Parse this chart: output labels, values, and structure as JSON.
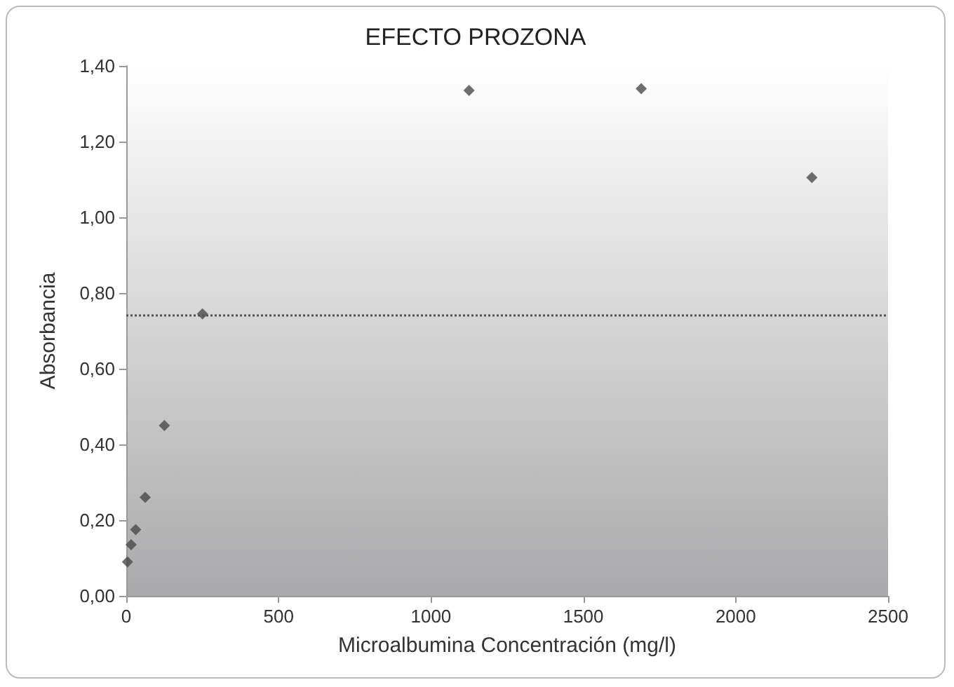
{
  "chart_data": {
    "type": "scatter",
    "title": "EFECTO PROZONA",
    "xlabel": "Microalbumina Concentración (mg/l)",
    "ylabel": "Absorbancia",
    "x": [
      4,
      16,
      31,
      62,
      125,
      250,
      1125,
      1690,
      2250
    ],
    "values": [
      0.09,
      0.135,
      0.175,
      0.26,
      0.45,
      0.745,
      1.335,
      1.34,
      1.105
    ],
    "color": "#4a4a4a",
    "marker": "diamond",
    "grid": false,
    "xlim": [
      0,
      2500
    ],
    "xticks": [
      0,
      500,
      1000,
      1500,
      2000,
      2500
    ],
    "ylim": [
      0,
      1.4
    ],
    "yticks": [
      {
        "value": 0,
        "label": "0,00"
      },
      {
        "value": 0.2,
        "label": "0,20"
      },
      {
        "value": 0.4,
        "label": "0,40"
      },
      {
        "value": 0.6,
        "label": "0,60"
      },
      {
        "value": 0.8,
        "label": "0,80"
      },
      {
        "value": 1,
        "label": "1,00"
      },
      {
        "value": 1.2,
        "label": "1,20"
      },
      {
        "value": 1.4,
        "label": "1,40"
      }
    ],
    "ref_lines": [
      {
        "axis": "y",
        "value": 0.745,
        "color": "#555555",
        "line_style": "dotted"
      }
    ]
  }
}
